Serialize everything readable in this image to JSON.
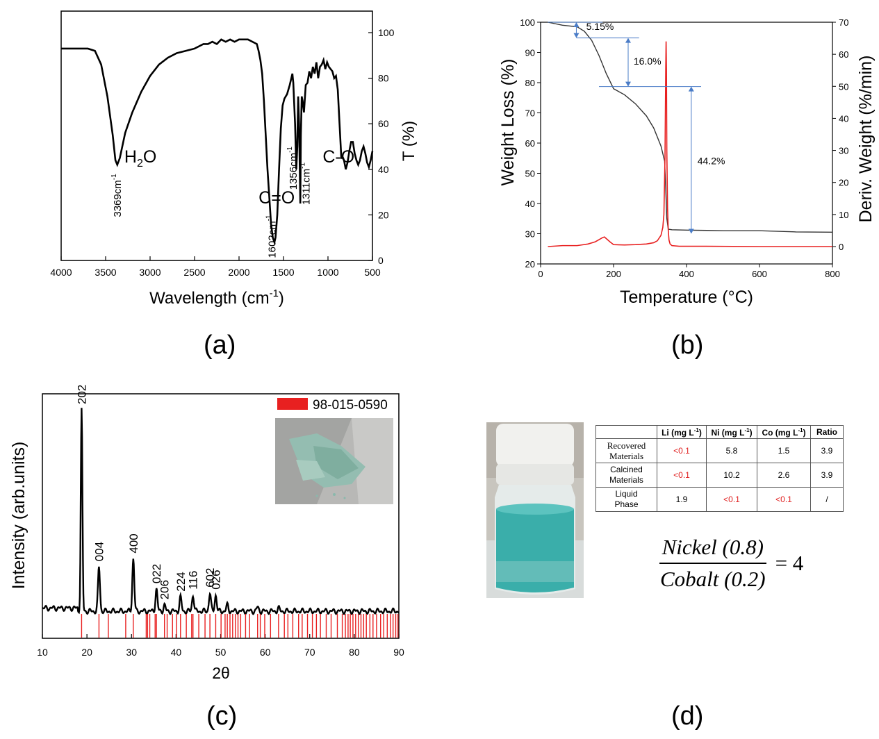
{
  "panel_labels": [
    "(a)",
    "(b)",
    "(c)",
    "(d)"
  ],
  "chart_data": [
    {
      "panel": "(a)",
      "type": "line",
      "xlabel": "Wavelength (cm",
      "xlabel_sup": "-1",
      "xlabel_end": ")",
      "ylabel": "T (%)",
      "xlim": [
        4000,
        500
      ],
      "x_reversed": true,
      "ylim": [
        0,
        100
      ],
      "y_axis_side": "right",
      "x_ticks": [
        4000,
        3500,
        3000,
        2500,
        2000,
        1500,
        1000,
        500
      ],
      "y_ticks": [
        0,
        20,
        40,
        60,
        80,
        100
      ],
      "series": [
        {
          "x": [
            4000,
            3700,
            3620,
            3550,
            3480,
            3420,
            3390,
            3369,
            3340,
            3280,
            3200,
            3100,
            3000,
            2900,
            2800,
            2700,
            2600,
            2500,
            2400,
            2350,
            2300,
            2250,
            2200,
            2150,
            2100,
            2050,
            2000,
            1900,
            1800,
            1780,
            1760,
            1740,
            1720,
            1700,
            1680,
            1660,
            1640,
            1620,
            1602,
            1590,
            1570,
            1550,
            1530,
            1510,
            1490,
            1460,
            1430,
            1400,
            1390,
            1370,
            1356,
            1345,
            1335,
            1325,
            1315,
            1311,
            1305,
            1295,
            1285,
            1270,
            1250,
            1230,
            1210,
            1190,
            1170,
            1150,
            1130,
            1110,
            1090,
            1070,
            1050,
            1030,
            1010,
            990,
            970,
            950,
            930,
            910,
            890,
            870,
            850,
            830,
            820,
            800,
            780,
            760,
            740,
            720,
            700,
            680,
            660,
            640,
            620,
            600,
            580,
            560,
            540,
            520,
            500
          ],
          "y": [
            93,
            93,
            92,
            86,
            72,
            55,
            44,
            42,
            45,
            56,
            65,
            74,
            81,
            86,
            89,
            91,
            92,
            93,
            95,
            95,
            96,
            95,
            97,
            96,
            97,
            96,
            97,
            97,
            95,
            92,
            88,
            82,
            70,
            55,
            40,
            28,
            16,
            10,
            8,
            10,
            20,
            40,
            58,
            68,
            71,
            73,
            77,
            82,
            78,
            60,
            40,
            50,
            72,
            60,
            35,
            25,
            55,
            72,
            70,
            65,
            77,
            78,
            83,
            80,
            85,
            82,
            87,
            80,
            85,
            86,
            88,
            84,
            87,
            85,
            84,
            83,
            80,
            81,
            75,
            60,
            45,
            45,
            44,
            40,
            43,
            48,
            52,
            52,
            47,
            44,
            42,
            44,
            48,
            50,
            47,
            43,
            41,
            44,
            48
          ],
          "color": "#000000"
        }
      ],
      "annotations": [
        {
          "text": "H",
          "sub": "2",
          "end": "O",
          "x": 3290,
          "y": 43
        },
        {
          "text": "3369cm",
          "sup": "-1",
          "x": 3369,
          "y": 38,
          "rotate": true
        },
        {
          "text": "C=O",
          "x": 1780,
          "y": 25
        },
        {
          "text": "1602cm",
          "sup": "-1",
          "x": 1630,
          "y": 20,
          "rotate": true
        },
        {
          "text": "1356cm",
          "sup": "-1",
          "x": 1390,
          "y": 50,
          "rotate": true
        },
        {
          "text": "1311cm",
          "sup": "-1",
          "x": 1245,
          "y": 43,
          "rotate": true
        },
        {
          "text": "C-O",
          "x": 1060,
          "y": 43
        }
      ]
    },
    {
      "panel": "(b)",
      "type": "line",
      "xlabel": "Temperature (°C)",
      "ylabel": "Weight Loss (%)",
      "y2label": "Deriv. Weight (%/min)",
      "xlim": [
        0,
        800
      ],
      "ylim": [
        20,
        100
      ],
      "y2lim": [
        -5,
        70
      ],
      "x_ticks": [
        0,
        200,
        400,
        600,
        800
      ],
      "y_ticks": [
        20,
        30,
        40,
        50,
        60,
        70,
        80,
        90,
        100
      ],
      "y2_ticks": [
        0,
        10,
        20,
        30,
        40,
        50,
        60,
        70
      ],
      "series": [
        {
          "name_hidden": "weight",
          "axis": "left",
          "color": "#333333",
          "x": [
            20,
            60,
            100,
            120,
            140,
            160,
            180,
            200,
            230,
            260,
            290,
            310,
            330,
            340,
            343,
            346,
            350,
            360,
            400,
            500,
            600,
            700,
            800
          ],
          "y": [
            100,
            99,
            98.5,
            97,
            94,
            89,
            83,
            78,
            76,
            73,
            69,
            65,
            59,
            54,
            45,
            35,
            31.5,
            31.3,
            31.2,
            31,
            31,
            30.6,
            30.5
          ]
        },
        {
          "name_hidden": "derivative",
          "axis": "right",
          "color": "#e82020",
          "x": [
            20,
            60,
            100,
            130,
            150,
            170,
            175,
            180,
            190,
            200,
            230,
            260,
            290,
            310,
            320,
            330,
            335,
            338,
            341,
            343,
            344,
            345,
            346,
            348,
            350,
            352,
            355,
            360,
            380,
            450,
            600,
            800
          ],
          "y": [
            0,
            0.3,
            0.3,
            0.8,
            1.5,
            2.8,
            3,
            2.5,
            1.5,
            0.6,
            0.5,
            0.6,
            0.8,
            1.2,
            1.8,
            3.5,
            6,
            10,
            28,
            55,
            64,
            55,
            30,
            12,
            5,
            2,
            0.8,
            0.3,
            0.1,
            0.1,
            0,
            0
          ]
        }
      ],
      "annotations": [
        {
          "text": "5.15%",
          "x": 125,
          "y": 97.5
        },
        {
          "text": "16.0%",
          "x": 255,
          "y": 86
        },
        {
          "text": "44.2%",
          "x": 430,
          "y": 53
        }
      ],
      "arrows": [
        {
          "x": 98,
          "y_from": 100,
          "y_to": 94.8,
          "hline_x": [
            98,
            270
          ]
        },
        {
          "x": 240,
          "y_from": 94.8,
          "y_to": 78.7,
          "hline_x": [
            160,
            440
          ]
        },
        {
          "x": 413,
          "y_from": 78.7,
          "y_to": 30,
          "hline_x": null
        }
      ],
      "arrow_color": "#4a7cc7"
    },
    {
      "panel": "(c)",
      "type": "line",
      "xlabel": "2θ",
      "ylabel": "Intensity (arb.units)",
      "xlim": [
        10,
        90
      ],
      "x_ticks": [
        10,
        20,
        30,
        40,
        50,
        60,
        70,
        80,
        90
      ],
      "legend": {
        "label": "98-015-0590",
        "color": "#e82020",
        "position": "top-right"
      },
      "peaks": [
        {
          "x": 18.8,
          "intensity": 100,
          "label": "202"
        },
        {
          "x": 22.7,
          "intensity": 22,
          "label": "004"
        },
        {
          "x": 30.4,
          "intensity": 26,
          "label": "400"
        },
        {
          "x": 35.6,
          "intensity": 11,
          "label": "022"
        },
        {
          "x": 37.4,
          "intensity": 3,
          "label": "206"
        },
        {
          "x": 41.0,
          "intensity": 7,
          "label": "224"
        },
        {
          "x": 43.8,
          "intensity": 8,
          "label": "116"
        },
        {
          "x": 47.6,
          "intensity": 9,
          "label": "602"
        },
        {
          "x": 48.9,
          "intensity": 8,
          "label": "026"
        },
        {
          "x": 51.5,
          "intensity": 3,
          "label": ""
        },
        {
          "x": 58.3,
          "intensity": 2,
          "label": ""
        },
        {
          "x": 63.0,
          "intensity": 1.5,
          "label": ""
        }
      ],
      "reference_lines": [
        18.8,
        22.7,
        24.8,
        28.7,
        30.4,
        33.3,
        33.6,
        34.1,
        35.3,
        35.6,
        37.4,
        38.0,
        39.2,
        40.1,
        41.0,
        42.3,
        43.5,
        43.8,
        45.1,
        46.5,
        47.6,
        48.9,
        50.1,
        51.0,
        51.5,
        52.1,
        52.7,
        53.3,
        53.9,
        54.5,
        55.6,
        56.5,
        58.3,
        58.9,
        59.9,
        61.2,
        63.0,
        64.3,
        65.1,
        66.2,
        67.5,
        68.3,
        69.5,
        70.6,
        71.5,
        72.4,
        73.7,
        74.8,
        76.2,
        77.3,
        78.0,
        78.6,
        79.1,
        79.7,
        80.3,
        80.9,
        81.5,
        82.1,
        82.7,
        83.5,
        84.2,
        85.0,
        85.9,
        86.6,
        87.4,
        88.1,
        88.7,
        89.3,
        89.8
      ]
    }
  ],
  "table": {
    "headers": [
      "",
      "Li (mg L",
      "Ni (mg L",
      "Co (mg L",
      "Ratio"
    ],
    "header_sup": "-1",
    "rows": [
      {
        "label_l1": "Recovered",
        "label_l2": "Materials",
        "li": "<0.1",
        "ni": "5.8",
        "co": "1.5",
        "ratio": "3.9",
        "li_red": true,
        "ni_red": false,
        "co_red": false
      },
      {
        "label_l1": "Calcined",
        "label_l2": "Materials",
        "li": "<0.1",
        "ni": "10.2",
        "co": "2.6",
        "ratio": "3.9",
        "li_red": true,
        "ni_red": false,
        "co_red": false
      },
      {
        "label_l1": "Liquid",
        "label_l2": "Phase",
        "li": "1.9",
        "ni": "<0.1",
        "co": "<0.1",
        "ratio": "/",
        "li_red": false,
        "ni_red": true,
        "co_red": true
      }
    ]
  },
  "equation": {
    "numerator": "Nickel (0.8)",
    "denominator": "Cobalt (0.2)",
    "rhs": "= 4"
  },
  "colors": {
    "red": "#e82020",
    "blue_arrow": "#4a7cc7",
    "solution": "#3aaeaa",
    "powder": "#8ab8ac"
  }
}
